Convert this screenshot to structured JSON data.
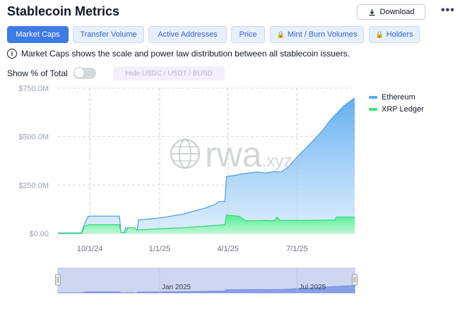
{
  "header": {
    "title": "Stablecoin Metrics",
    "download_label": "Download",
    "more_label": "•••"
  },
  "tabs": [
    {
      "label": "Market Caps",
      "active": true,
      "locked": false
    },
    {
      "label": "Transfer Volume",
      "active": false,
      "locked": false
    },
    {
      "label": "Active Addresses",
      "active": false,
      "locked": false
    },
    {
      "label": "Price",
      "active": false,
      "locked": false
    },
    {
      "label": "Mint / Burn Volumes",
      "active": false,
      "locked": true
    },
    {
      "label": "Holders",
      "active": false,
      "locked": true
    }
  ],
  "info_text": "Market Caps shows the scale and power law distribution between all stablecoin issuers.",
  "toggle": {
    "label": "Show % of Total",
    "on": false
  },
  "hide_button_label": "Hide USDC / USDT / BUSD",
  "watermark": "rwa.xyz",
  "colors": {
    "accent": "#3d7be6",
    "ethereum": "#5aaaf0",
    "xrp": "#3ee680"
  },
  "chart_data": {
    "type": "area",
    "stacked": false,
    "title": "",
    "xlabel": "",
    "ylabel": "",
    "x_ticks": [
      "10/1/24",
      "1/1/25",
      "4/1/25",
      "7/1/25"
    ],
    "y_ticks": [
      "$0.00",
      "$250.0M",
      "$500.0M",
      "$750.0M"
    ],
    "ylim": [
      0,
      750
    ],
    "x_range": [
      "2024-08-20",
      "2025-09-15"
    ],
    "grid": true,
    "legend_position": "top-right",
    "series": [
      {
        "name": "Ethereum",
        "points": [
          [
            "2024-08-20",
            3
          ],
          [
            "2024-09-20",
            3
          ],
          [
            "2024-09-24",
            50
          ],
          [
            "2024-09-29",
            90
          ],
          [
            "2024-11-09",
            90
          ],
          [
            "2024-11-11",
            5
          ],
          [
            "2024-11-15",
            5
          ],
          [
            "2024-11-17",
            30
          ],
          [
            "2024-11-27",
            30
          ],
          [
            "2024-11-29",
            3
          ],
          [
            "2024-12-02",
            3
          ],
          [
            "2024-12-04",
            70
          ],
          [
            "2025-01-01",
            80
          ],
          [
            "2025-02-01",
            100
          ],
          [
            "2025-03-01",
            130
          ],
          [
            "2025-03-15",
            150
          ],
          [
            "2025-03-20",
            165
          ],
          [
            "2025-03-28",
            165
          ],
          [
            "2025-03-30",
            295
          ],
          [
            "2025-04-10",
            300
          ],
          [
            "2025-04-20",
            308
          ],
          [
            "2025-05-10",
            318
          ],
          [
            "2025-05-20",
            312
          ],
          [
            "2025-06-01",
            320
          ],
          [
            "2025-06-10",
            318
          ],
          [
            "2025-06-20",
            345
          ],
          [
            "2025-07-01",
            395
          ],
          [
            "2025-07-15",
            450
          ],
          [
            "2025-08-01",
            520
          ],
          [
            "2025-08-15",
            590
          ],
          [
            "2025-09-01",
            660
          ],
          [
            "2025-09-15",
            700
          ]
        ]
      },
      {
        "name": "XRP Ledger",
        "points": [
          [
            "2024-08-20",
            0
          ],
          [
            "2024-09-20",
            0
          ],
          [
            "2024-09-24",
            35
          ],
          [
            "2024-09-29",
            45
          ],
          [
            "2024-11-09",
            45
          ],
          [
            "2024-11-11",
            5
          ],
          [
            "2024-11-17",
            5
          ],
          [
            "2024-11-20",
            30
          ],
          [
            "2024-11-29",
            30
          ],
          [
            "2024-12-02",
            18
          ],
          [
            "2025-01-01",
            25
          ],
          [
            "2025-02-01",
            30
          ],
          [
            "2025-03-01",
            38
          ],
          [
            "2025-03-28",
            45
          ],
          [
            "2025-03-30",
            95
          ],
          [
            "2025-04-15",
            90
          ],
          [
            "2025-04-25",
            65
          ],
          [
            "2025-05-20",
            68
          ],
          [
            "2025-06-01",
            66
          ],
          [
            "2025-06-05",
            85
          ],
          [
            "2025-06-08",
            68
          ],
          [
            "2025-07-15",
            68
          ],
          [
            "2025-08-20",
            70
          ],
          [
            "2025-08-22",
            85
          ],
          [
            "2025-09-15",
            85
          ]
        ]
      }
    ]
  },
  "navigator": {
    "labels": [
      "Jan 2025",
      "Jul 2025"
    ]
  }
}
